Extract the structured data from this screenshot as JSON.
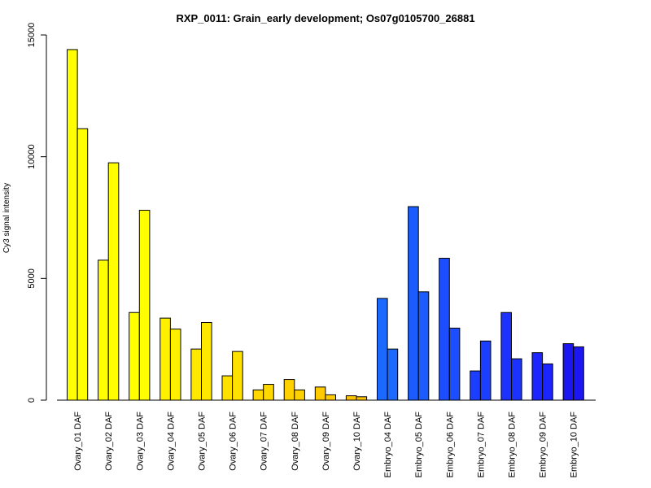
{
  "chart_data": {
    "type": "bar",
    "title": "RXP_0011: Grain_early development; Os07g0105700_26881",
    "xlabel": "",
    "ylabel": "Cy3 signal intensity",
    "ylim": [
      0,
      15000
    ],
    "yticks": [
      "0",
      "5000",
      "10000",
      "15000"
    ],
    "grid": false,
    "legend": "none",
    "categories": [
      "Ovary_01 DAF",
      "Ovary_02 DAF",
      "Ovary_03 DAF",
      "Ovary_04 DAF",
      "Ovary_05 DAF",
      "Ovary_06 DAF",
      "Ovary_07 DAF",
      "Ovary_08 DAF",
      "Ovary_09 DAF",
      "Ovary_10 DAF",
      "Embryo_04 DAF",
      "Embryo_05 DAF",
      "Embryo_06 DAF",
      "Embryo_07 DAF",
      "Embryo_08 DAF",
      "Embryo_09 DAF",
      "Embryo_10 DAF"
    ],
    "series": [
      {
        "values": [
          14400,
          5750,
          3600,
          3370,
          2100,
          1000,
          420,
          850,
          540,
          180,
          4180,
          7950,
          5830,
          1200,
          3600,
          1950,
          2320
        ]
      },
      {
        "values": [
          11150,
          9750,
          7800,
          2920,
          3190,
          2000,
          650,
          420,
          220,
          140,
          2100,
          4450,
          2960,
          2430,
          1700,
          1490,
          2190
        ]
      }
    ],
    "colors": [
      "#ffff00",
      "#ffff00",
      "#ffff00",
      "#fff000",
      "#ffe800",
      "#ffe100",
      "#ffd800",
      "#ffd100",
      "#ffca00",
      "#ffc200",
      "#1c69ff",
      "#1c5cff",
      "#1c4eff",
      "#1c3fff",
      "#1c33ff",
      "#1c25ff",
      "#1c17f0"
    ]
  }
}
